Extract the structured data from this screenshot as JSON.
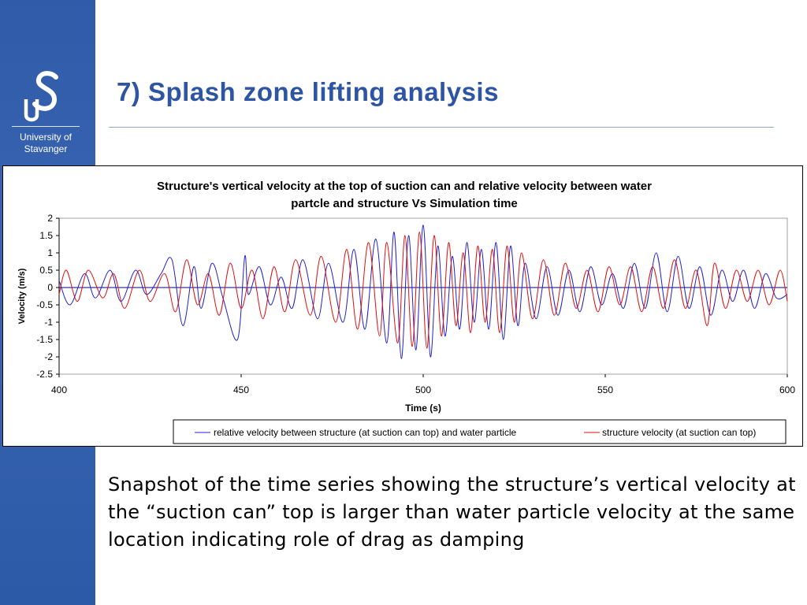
{
  "slide": {
    "title": "7) Splash zone lifting analysis",
    "body": "Snapshot of the time series showing the structure’s vertical velocity  at the “suction can” top is larger than water particle velocity at the same location indicating role of drag as damping"
  },
  "logo": {
    "line1": "University of",
    "line2": "Stavanger",
    "letters": "US"
  },
  "colors": {
    "sidebar": "#2f5ba9",
    "title": "#2d55a3",
    "relative_series": "#2020d0",
    "structure_series": "#e01010",
    "zero_line": "#000080"
  },
  "chart_data": {
    "type": "line",
    "title": "Structure's vertical velocity at the top of suction can and relative velocity between water partcle and structure Vs Simulation time",
    "title_lines": [
      "Structure's vertical velocity at the top of suction can and relative velocity between water",
      "partcle and structure Vs Simulation time"
    ],
    "xlabel": "Time (s)",
    "ylabel": "Velocity (m/s)",
    "xlim": [
      400,
      600
    ],
    "ylim": [
      -2.5,
      2
    ],
    "xticks": [
      "400",
      "450",
      "500",
      "550",
      "600"
    ],
    "yticks": [
      "2",
      "1.5",
      "1",
      "0.5",
      "0",
      "-0.5",
      "-1",
      "-1.5",
      "-2",
      "-2.5"
    ],
    "grid": false,
    "legend_position": "bottom",
    "series": [
      {
        "name": "relative velocity between structure (at suction can top) and water particle",
        "color": "#2020d0",
        "x": [
          400,
          403,
          407,
          410,
          414,
          417,
          421,
          424,
          428,
          431,
          434,
          437,
          439,
          442,
          445,
          449,
          451,
          452,
          455,
          458,
          461,
          464,
          467,
          471,
          474,
          478,
          481,
          484,
          487,
          490,
          492,
          494,
          496,
          498,
          500,
          502,
          504,
          506,
          508,
          510,
          512,
          514,
          516,
          518,
          520,
          522,
          524,
          526,
          528,
          531,
          534,
          537,
          540,
          543,
          546,
          549,
          552,
          555,
          558,
          561,
          564,
          567,
          570,
          573,
          576,
          579,
          582,
          585,
          588,
          591,
          594,
          597,
          600
        ],
        "y": [
          0.2,
          -0.5,
          0.4,
          -0.3,
          0.5,
          -0.4,
          0.5,
          -0.2,
          0.4,
          0.8,
          -1.1,
          0.6,
          -0.6,
          0.7,
          -0.3,
          -1.5,
          0.9,
          -0.2,
          0.6,
          -0.5,
          0.3,
          -0.6,
          0.8,
          -0.9,
          0.7,
          -1.0,
          1.1,
          -1.2,
          1.4,
          -1.6,
          1.6,
          -2.05,
          1.5,
          -1.8,
          1.8,
          -2.0,
          1.2,
          -1.4,
          0.9,
          -1.2,
          1.3,
          -1.0,
          1.1,
          -1.2,
          1.3,
          -1.5,
          1.2,
          -1.1,
          0.7,
          -0.9,
          0.6,
          -0.8,
          0.5,
          -0.7,
          0.6,
          -0.5,
          0.4,
          -0.6,
          0.7,
          -0.6,
          1.0,
          -0.7,
          0.9,
          -0.6,
          0.6,
          -0.8,
          0.5,
          -0.4,
          0.5,
          -0.6,
          0.4,
          -0.3,
          -0.2
        ]
      },
      {
        "name": "structure velocity (at suction can top)",
        "color": "#e01010",
        "x": [
          400,
          402,
          405,
          408,
          412,
          415,
          418,
          422,
          425,
          429,
          432,
          435,
          438,
          441,
          444,
          447,
          450,
          453,
          456,
          459,
          462,
          465,
          469,
          472,
          476,
          479,
          482,
          485,
          488,
          490,
          493,
          495,
          497,
          499,
          501,
          503,
          505,
          507,
          509,
          511,
          513,
          515,
          517,
          519,
          521,
          523,
          525,
          527,
          530,
          533,
          536,
          539,
          542,
          545,
          548,
          551,
          554,
          557,
          560,
          563,
          566,
          569,
          572,
          575,
          578,
          580,
          583,
          586,
          589,
          592,
          595,
          598,
          600
        ],
        "y": [
          -0.2,
          0.5,
          -0.4,
          0.5,
          -0.3,
          0.4,
          -0.6,
          0.5,
          -0.4,
          0.4,
          -0.7,
          0.8,
          -0.5,
          0.4,
          -0.8,
          0.7,
          -0.6,
          0.5,
          -0.9,
          0.6,
          -0.7,
          0.8,
          -0.8,
          0.9,
          -1.0,
          1.1,
          -1.2,
          1.3,
          -1.4,
          1.3,
          -1.6,
          1.5,
          -1.7,
          1.6,
          -1.75,
          1.5,
          -1.4,
          1.3,
          -1.1,
          1.0,
          -1.3,
          1.2,
          -1.0,
          1.1,
          -1.3,
          1.2,
          -1.0,
          1.0,
          -0.9,
          0.8,
          -0.8,
          0.7,
          -0.6,
          0.5,
          -0.7,
          0.6,
          -0.5,
          0.6,
          -0.7,
          0.6,
          -0.6,
          0.8,
          -0.6,
          0.5,
          -1.1,
          0.7,
          -0.6,
          0.5,
          -0.4,
          0.5,
          -0.5,
          0.5,
          -0.4
        ]
      }
    ]
  }
}
